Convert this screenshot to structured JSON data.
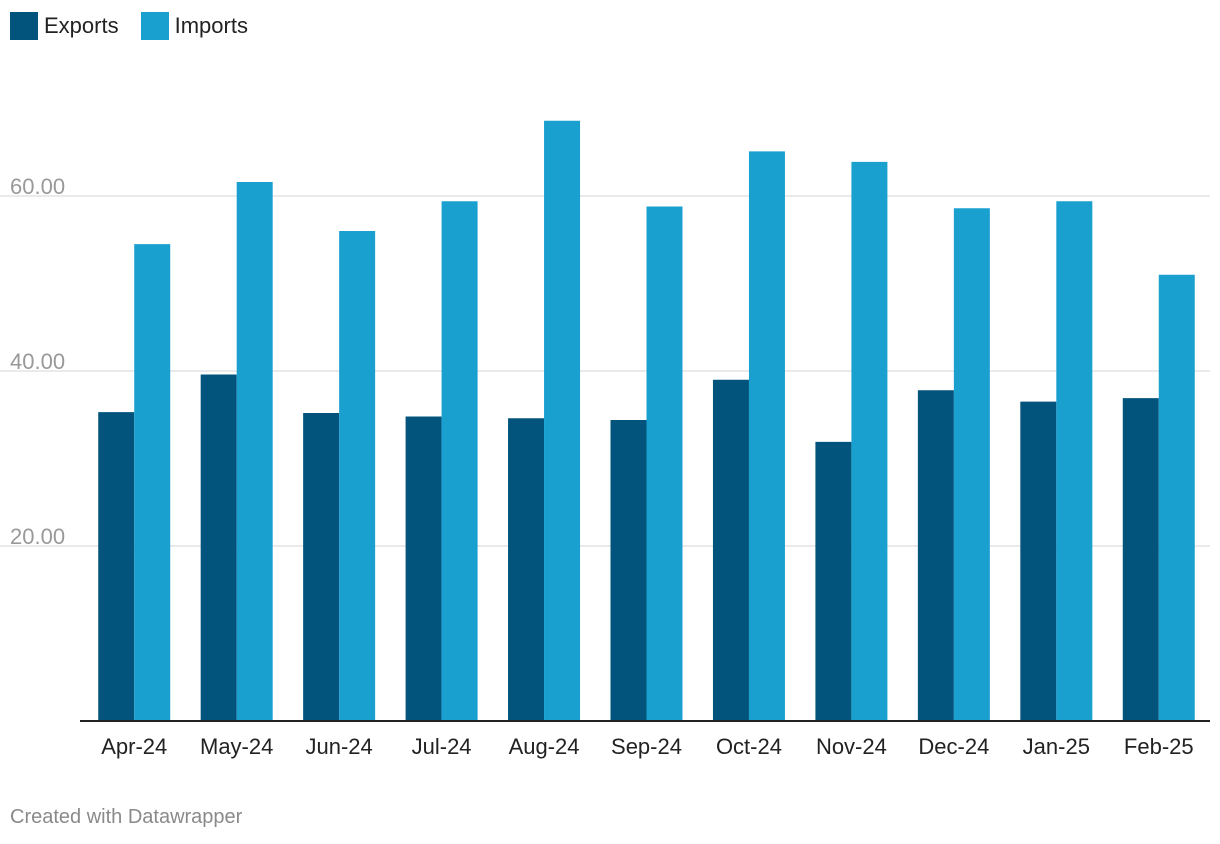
{
  "legend": [
    {
      "label": "Exports",
      "color": "#02547c"
    },
    {
      "label": "Imports",
      "color": "#1aa0cf"
    }
  ],
  "footer": {
    "text": "Created with Datawrapper"
  },
  "chart_data": {
    "type": "bar",
    "categories": [
      "Apr-24",
      "May-24",
      "Jun-24",
      "Jul-24",
      "Aug-24",
      "Sep-24",
      "Oct-24",
      "Nov-24",
      "Dec-24",
      "Jan-25",
      "Feb-25"
    ],
    "series": [
      {
        "name": "Exports",
        "color": "#02547c",
        "values": [
          35.3,
          39.6,
          35.2,
          34.8,
          34.6,
          34.4,
          39.0,
          31.9,
          37.8,
          36.5,
          36.9
        ]
      },
      {
        "name": "Imports",
        "color": "#1aa0cf",
        "values": [
          54.5,
          61.6,
          56.0,
          59.4,
          68.6,
          58.8,
          65.1,
          63.9,
          58.6,
          59.4,
          51.0
        ]
      }
    ],
    "yticks": [
      20,
      40,
      60
    ],
    "ytick_labels": [
      "20.00",
      "40.00",
      "60.00"
    ],
    "ylim": [
      0,
      70
    ],
    "grid": true,
    "legend_position": "top-left"
  }
}
